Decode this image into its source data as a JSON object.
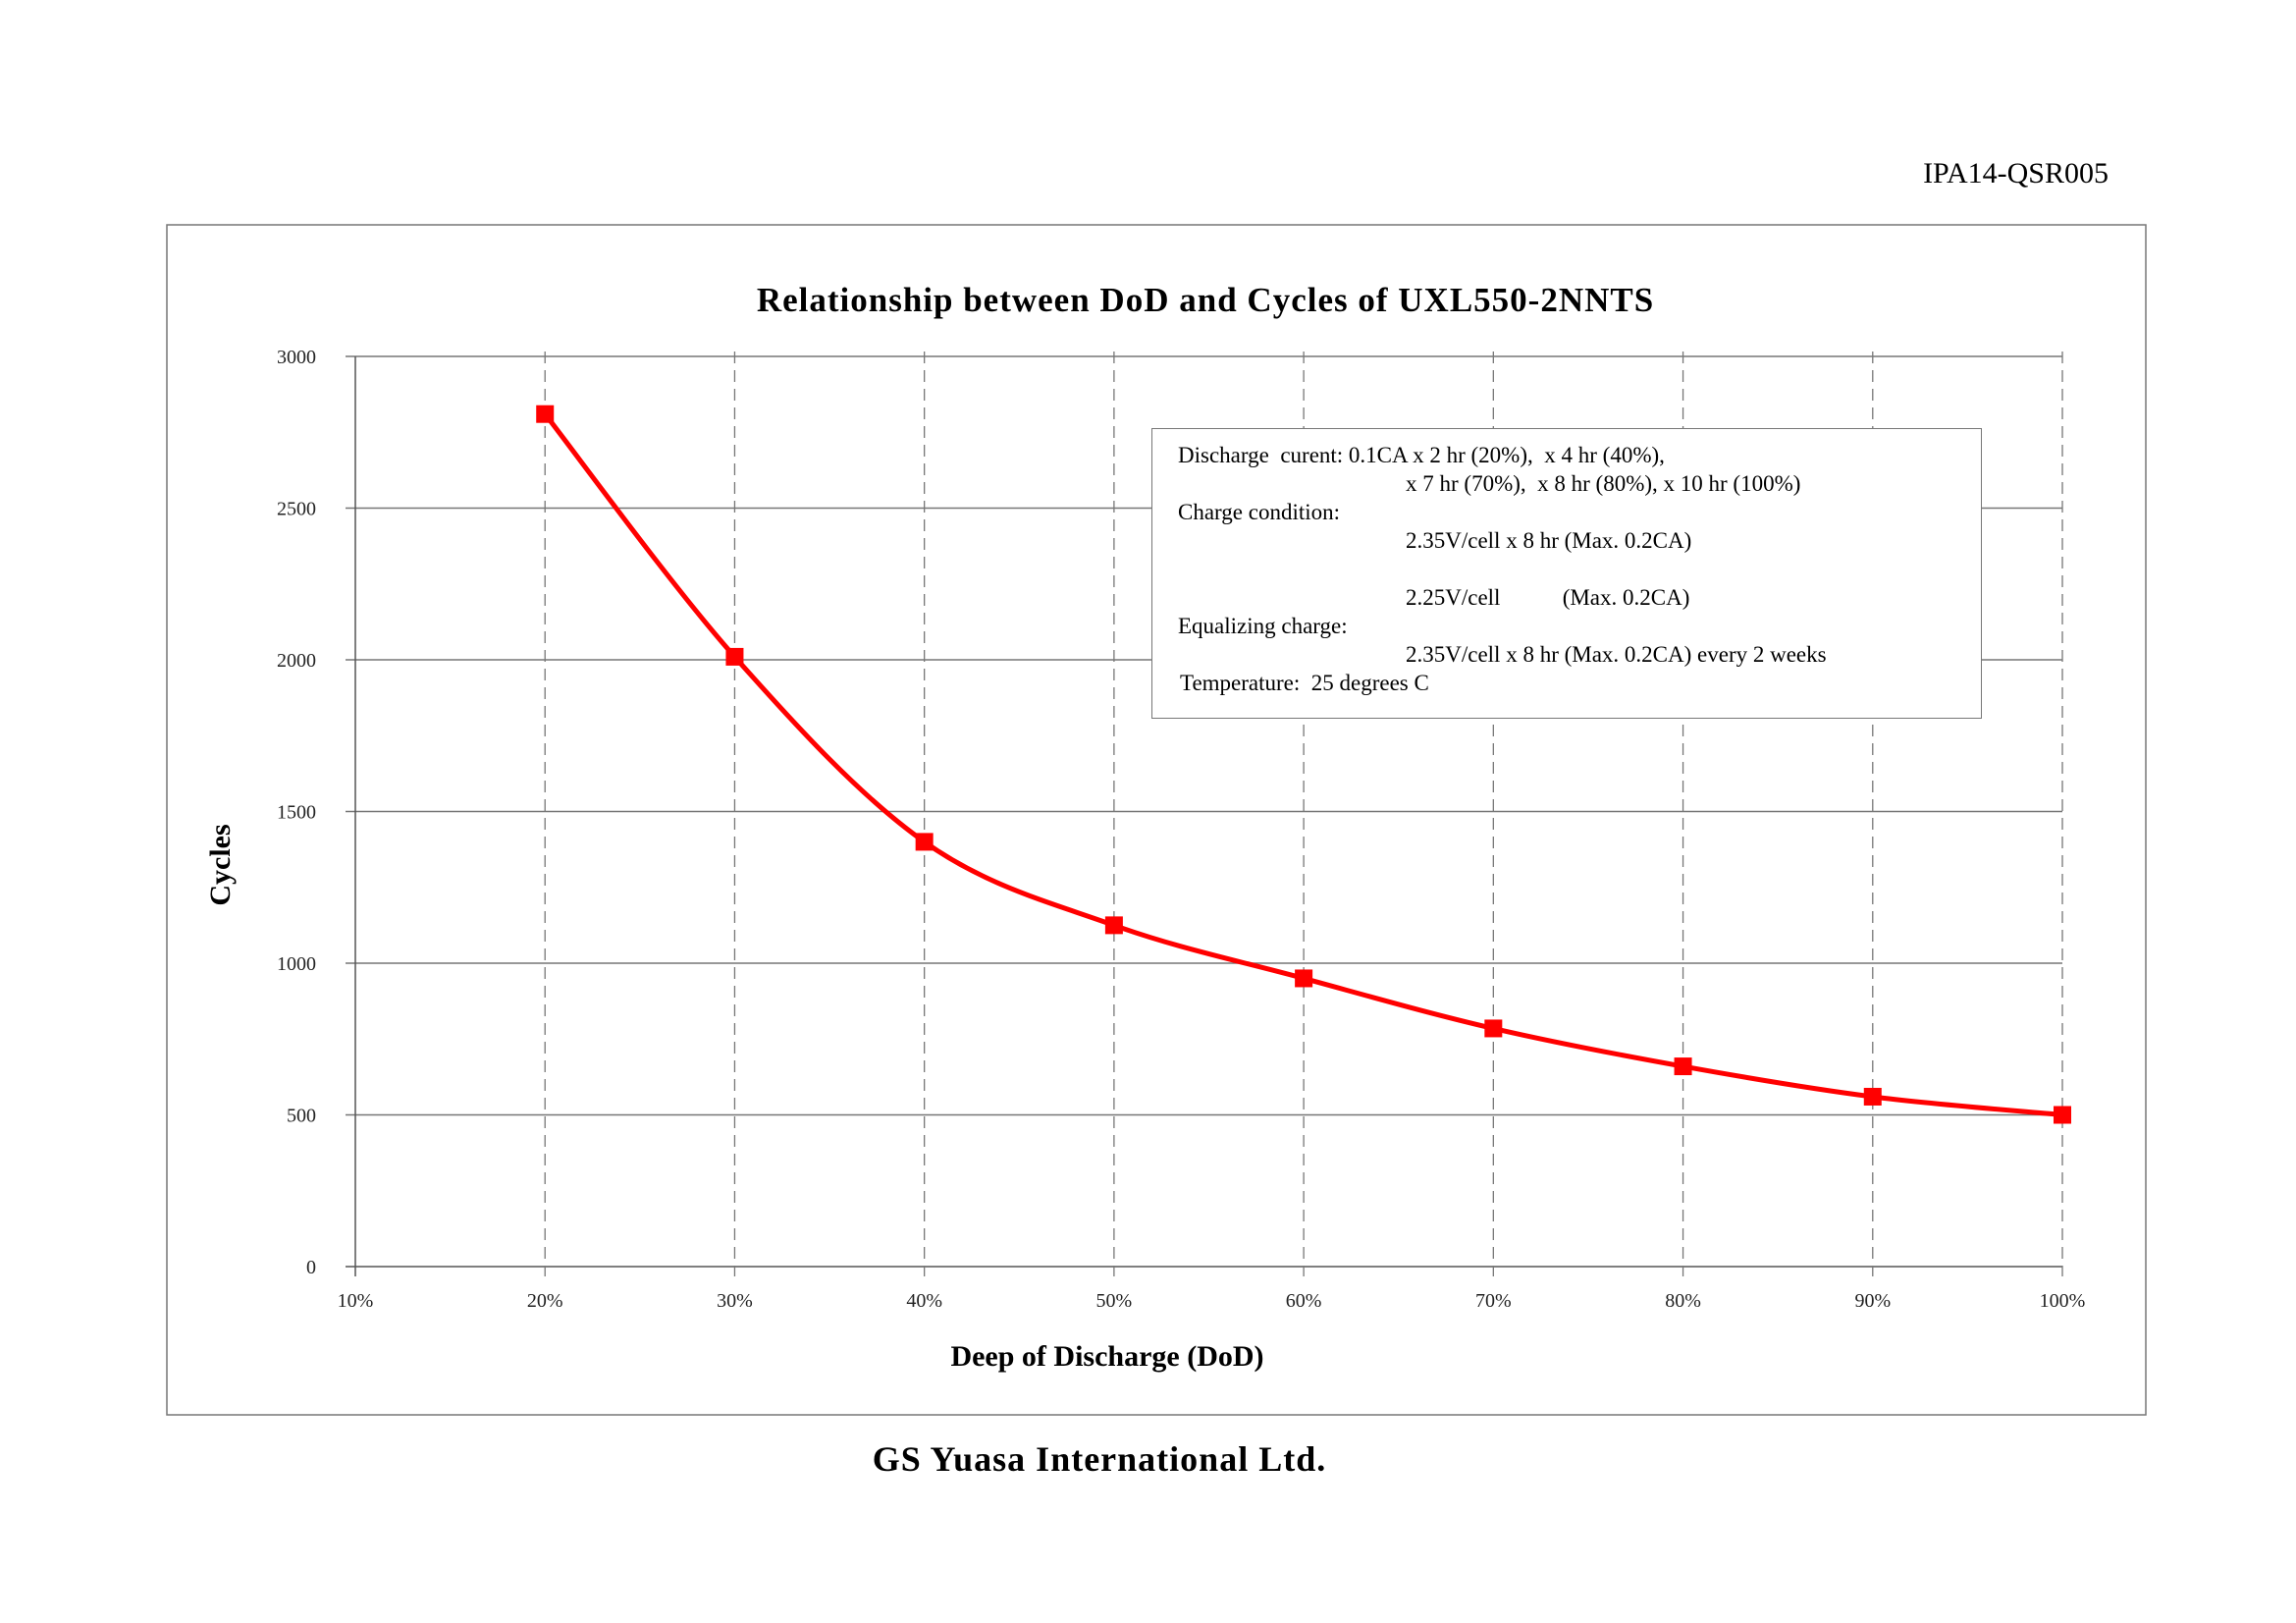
{
  "document_code": "IPA14-QSR005",
  "footer": "GS Yuasa International Ltd.",
  "notes": {
    "discharge_label": "Discharge  curent: 0.1CA x 2 hr (20%),  x 4 hr (40%),",
    "discharge_line2": "x 7 hr (70%),  x 8 hr (80%), x 10 hr (100%)",
    "charge_label": "Charge condition:",
    "charge_line1": "2.35V/cell x 8 hr (Max. 0.2CA)",
    "charge_line2": "2.25V/cell           (Max. 0.2CA)",
    "equalizing_label": "Equalizing charge:",
    "equalizing_line": "2.35V/cell x 8 hr (Max. 0.2CA) every 2 weeks",
    "temperature": "Temperature:  25 degrees C"
  },
  "chart_data": {
    "type": "line",
    "title": "Relationship between DoD and Cycles of UXL550-2NNTS",
    "xlabel": "Deep of Discharge (DoD)",
    "ylabel": "Cycles",
    "x_ticks": [
      "10%",
      "20%",
      "30%",
      "40%",
      "50%",
      "60%",
      "70%",
      "80%",
      "90%",
      "100%"
    ],
    "y_ticks": [
      "0",
      "500",
      "1000",
      "1500",
      "2000",
      "2500",
      "3000"
    ],
    "xlim": [
      10,
      100
    ],
    "ylim": [
      0,
      3000
    ],
    "grid": true,
    "series": [
      {
        "name": "Cycles",
        "color": "#ff0000",
        "marker": "square",
        "x": [
          20,
          30,
          40,
          50,
          60,
          70,
          80,
          90,
          100
        ],
        "y": [
          2810,
          2010,
          1400,
          1125,
          950,
          785,
          660,
          560,
          500
        ]
      }
    ]
  }
}
